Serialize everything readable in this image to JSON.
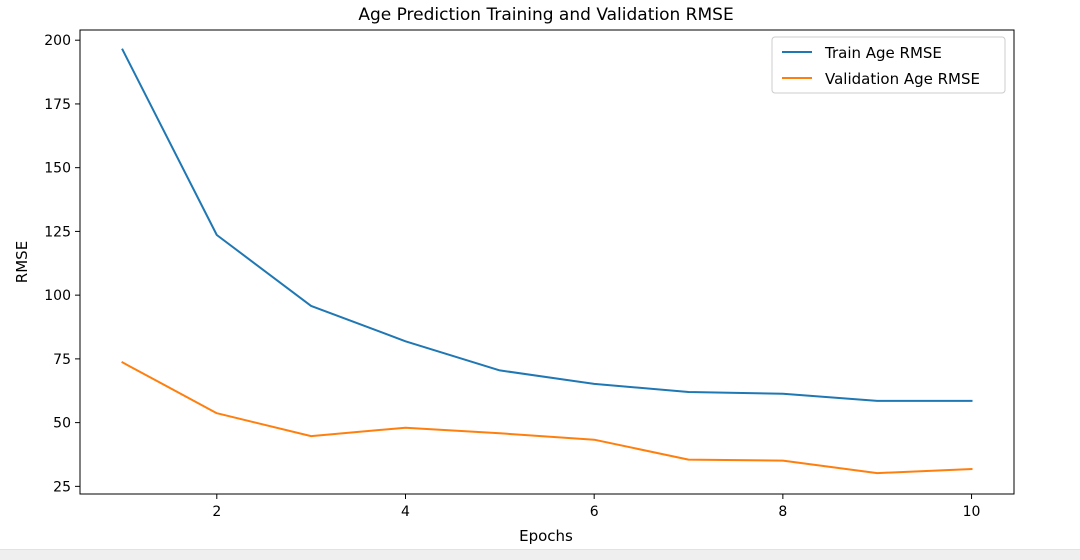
{
  "chart_data": {
    "type": "line",
    "title": "Age Prediction Training and Validation RMSE",
    "xlabel": "Epochs",
    "ylabel": "RMSE",
    "x": [
      1,
      2,
      3,
      4,
      5,
      6,
      7,
      8,
      9,
      10
    ],
    "series": [
      {
        "name": "Train Age RMSE",
        "color": "#1f77b4",
        "values": [
          196.3,
          123.6,
          95.8,
          81.9,
          70.5,
          65.2,
          62.0,
          61.3,
          58.5,
          58.5
        ]
      },
      {
        "name": "Validation Age RMSE",
        "color": "#ff7f0e",
        "values": [
          73.6,
          53.7,
          44.7,
          48.0,
          45.8,
          43.3,
          35.5,
          35.1,
          30.2,
          31.8
        ]
      }
    ],
    "xlim": [
      0.55,
      10.45
    ],
    "ylim": [
      22,
      204
    ],
    "xticks": [
      2,
      4,
      6,
      8,
      10
    ],
    "yticks": [
      25,
      50,
      75,
      100,
      125,
      150,
      175,
      200
    ],
    "grid": false,
    "legend": "top-right"
  }
}
